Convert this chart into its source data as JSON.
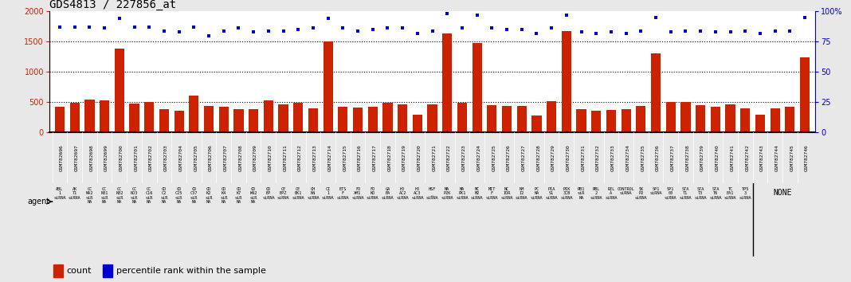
{
  "title": "GDS4813 / 227856_at",
  "gsm_labels": [
    "GSM782696",
    "GSM782697",
    "GSM782698",
    "GSM782699",
    "GSM782700",
    "GSM782701",
    "GSM782702",
    "GSM782703",
    "GSM782704",
    "GSM782705",
    "GSM782706",
    "GSM782707",
    "GSM782708",
    "GSM782709",
    "GSM782710",
    "GSM782711",
    "GSM782712",
    "GSM782713",
    "GSM782714",
    "GSM782715",
    "GSM782716",
    "GSM782717",
    "GSM782718",
    "GSM782719",
    "GSM782720",
    "GSM782721",
    "GSM782722",
    "GSM782723",
    "GSM782724",
    "GSM782725",
    "GSM782726",
    "GSM782727",
    "GSM782728",
    "GSM782729",
    "GSM782730",
    "GSM782731",
    "GSM782732",
    "GSM782733",
    "GSM782734",
    "GSM782735",
    "GSM782736",
    "GSM782737",
    "GSM782738",
    "GSM782739",
    "GSM782740",
    "GSM782741",
    "GSM782742",
    "GSM782743",
    "GSM782744",
    "GSM782745",
    "GSM782746"
  ],
  "counts": [
    430,
    490,
    540,
    530,
    1390,
    480,
    500,
    390,
    360,
    610,
    440,
    430,
    390,
    390,
    530,
    460,
    490,
    400,
    1500,
    430,
    410,
    430,
    490,
    460,
    290,
    470,
    1640,
    490,
    1470,
    450,
    440,
    440,
    280,
    520,
    1670,
    380,
    360,
    370,
    380,
    440,
    1300,
    510,
    500,
    450,
    430,
    460,
    400,
    290,
    400,
    430,
    1240
  ],
  "percentiles": [
    87,
    87,
    87,
    86,
    94,
    87,
    87,
    84,
    83,
    87,
    80,
    84,
    86,
    83,
    84,
    84,
    85,
    86,
    94,
    86,
    84,
    85,
    86,
    86,
    82,
    84,
    98,
    86,
    97,
    86,
    85,
    85,
    82,
    86,
    97,
    83,
    82,
    83,
    82,
    84,
    95,
    83,
    84,
    84,
    83,
    83,
    84,
    82,
    84,
    84,
    95
  ],
  "agent_labels": [
    "ABL\n1\nsiRNA",
    "AK\nT1\nsiRNA",
    "CC\nNA2\nsiR\nNA",
    "CC\nNB1\nsiR\nNA",
    "CC\nNB2\nsiR\nNA",
    "CC\nND3\nsiR\nNA",
    "CC\nC16\nsiR\nNA",
    "CD\nC2\nsiR\nNA",
    "CD\nC25\nsiR\nNA",
    "CD\nC37\nsiR\nNA",
    "CD\nK2\nsiR\nNA",
    "CD\nK4\nsiR\nNA",
    "CD\nK7\nsiR\nNA",
    "CD\nKN2\nsiR\nNA",
    "CD\nBP\nsiRNA",
    "CE\nBPZ\nsiRNA",
    "CE\nEK1\nsiRNA",
    "CH\nNN\nsiRNA",
    "CI\n1\nsiRNA",
    "ETS\nF\nsiRNA",
    "FO\nXM1\nsiRNA",
    "FO\nKO\nsiRNA",
    "GA\nBA\nsiRNA",
    "HD\nAC2\nsiRNA",
    "HD\nAC3\nsiRNA",
    "HSF\n_\nsiRNA",
    "MA\nP2K\nsiRNA",
    "MA\nPK1\nsiRNA",
    "MC\nM2\nsiRNA",
    "MIT\nF\nsiRNA",
    "NC\nIOR\nsiRNA",
    "NM\nI2\nsiRNA",
    "PC\nNA\nsiRNA",
    "PIA\nS1\nsiRNA",
    "PIK\n3CB\nsiRNA",
    "RB1\nsiR\nNA",
    "RBL\n2\nsiRNA",
    "REL\nA\nsiRNA",
    "CONTROL\nsiRNA",
    "SK\nP2\nsiRNA",
    "SP1\nsiRNA",
    "SP1\n00\nsiRNA",
    "STA\nT1\nsiRNA",
    "STA\nT3\nsiRNA",
    "STA\nT6\nsiRNA",
    "TC\nEA1\nsiRNA",
    "TP5\n3\nsiRNA",
    "NONE"
  ],
  "bar_color": "#cc2200",
  "dot_color": "#0000cc",
  "ylim_left": [
    0,
    2000
  ],
  "ylim_right": [
    0,
    100
  ],
  "yticks_left": [
    0,
    500,
    1000,
    1500,
    2000
  ],
  "yticks_right": [
    0,
    25,
    50,
    75,
    100
  ],
  "chart_bg": "#ffffff",
  "fig_bg": "#e8e8e8",
  "xtick_bg": "#d0d0d0",
  "agent_bg_color": "#90ee90",
  "legend_bg": "#e8e8e8",
  "title_fontsize": 10,
  "bar_width": 0.65,
  "hline_values": [
    500,
    1000,
    1500
  ],
  "legend_items": [
    "count",
    "percentile rank within the sample"
  ]
}
